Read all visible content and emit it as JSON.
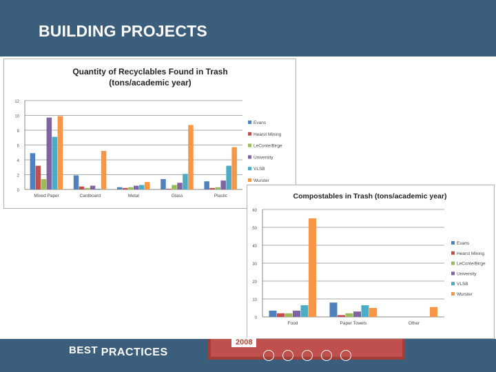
{
  "slide": {
    "title": "BUILDING PROJECTS"
  },
  "footer": {
    "brand_best": "BEST",
    "brand_practices": "PRACTICES",
    "year": "2008"
  },
  "colors": {
    "header_bg": "#3b5e7d",
    "series": [
      "#4f81bd",
      "#c0504d",
      "#9bbb59",
      "#8064a2",
      "#4bacc6",
      "#f79646"
    ]
  },
  "chart_data": [
    {
      "type": "bar",
      "title": "Quantity of Recyclables Found in Trash",
      "subtitle": "(tons/academic year)",
      "categories": [
        "Mixed Paper",
        "Cardboard",
        "Metal",
        "Glass",
        "Plastic"
      ],
      "series": [
        {
          "name": "Evans",
          "values": [
            4.9,
            1.9,
            0.3,
            1.4,
            1.1
          ]
        },
        {
          "name": "Hearst Mining",
          "values": [
            3.2,
            0.4,
            0.2,
            0.1,
            0.2
          ]
        },
        {
          "name": "LeConte/Birge",
          "values": [
            1.4,
            0.2,
            0.3,
            0.6,
            0.3
          ]
        },
        {
          "name": "University",
          "values": [
            9.7,
            0.5,
            0.5,
            0.9,
            1.2
          ]
        },
        {
          "name": "VLSB",
          "values": [
            7.1,
            0.1,
            0.6,
            2.1,
            3.2
          ]
        },
        {
          "name": "Wurster",
          "values": [
            9.9,
            5.2,
            1.0,
            8.7,
            5.7
          ]
        }
      ],
      "yticks": [
        "0",
        "2",
        "4",
        "6",
        "8",
        "10",
        "12"
      ],
      "ylim": [
        0,
        12
      ],
      "grid": true,
      "legend": "right"
    },
    {
      "type": "bar",
      "title": "Compostables in Trash (tons/academic year)",
      "categories": [
        "Food",
        "Paper Towels",
        "Other"
      ],
      "series": [
        {
          "name": "Evans",
          "values": [
            3.5,
            8,
            0
          ]
        },
        {
          "name": "Hearst Mining",
          "values": [
            2,
            1,
            0
          ]
        },
        {
          "name": "LeConte/Birge",
          "values": [
            2,
            2,
            0
          ]
        },
        {
          "name": "University",
          "values": [
            3.5,
            3,
            0
          ]
        },
        {
          "name": "VLSB",
          "values": [
            6.5,
            6.5,
            0
          ]
        },
        {
          "name": "Wurster",
          "values": [
            55,
            5,
            5.5
          ]
        }
      ],
      "yticks": [
        "0",
        "10",
        "20",
        "30",
        "40",
        "50",
        "60"
      ],
      "ylim": [
        0,
        60
      ],
      "grid": true,
      "legend": "right"
    }
  ]
}
